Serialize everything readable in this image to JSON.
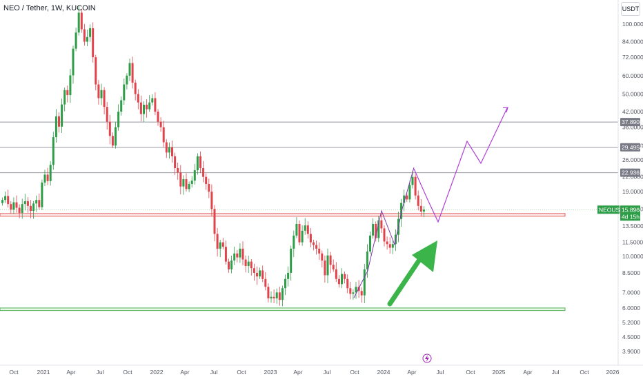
{
  "header": {
    "symbol_title": "NEO / Tether, 1W, KUCOIN"
  },
  "price_scale": {
    "currency_label": "USDT"
  },
  "chart_data": {
    "type": "candlestick",
    "symbol": "NEO / Tether",
    "interval": "1W",
    "exchange": "KUCOIN",
    "y_scale": "log",
    "ylim": [
      3.5,
      110
    ],
    "y_ticks": [
      "100.0000",
      "84.0000",
      "72.0000",
      "60.0000",
      "50.0000",
      "42.0000",
      "36.0000",
      "30.0000",
      "26.0000",
      "22.0000",
      "19.0000",
      "16.0000",
      "13.5000",
      "11.5000",
      "10.0000",
      "8.5000",
      "7.0000",
      "6.0000",
      "5.2000",
      "4.5000",
      "3.9000"
    ],
    "x_ticks": [
      "Oct",
      "2021",
      "Apr",
      "Jul",
      "Oct",
      "2022",
      "Apr",
      "Jul",
      "Oct",
      "2023",
      "Apr",
      "Jul",
      "Oct",
      "2024",
      "Apr",
      "Jul",
      "Oct",
      "2025",
      "Apr",
      "Jul",
      "Oct",
      "2026"
    ],
    "key_levels": [
      {
        "label": "37.8908",
        "value": 37.8908
      },
      {
        "label": "29.4958",
        "value": 29.4958
      },
      {
        "label": "22.9361",
        "value": 22.9361
      }
    ],
    "current_price": {
      "symbol_label": "NEOUSDT",
      "value_label": "15.8966",
      "countdown": "4d 15h",
      "value": 15.8966
    },
    "support_zone": [
      14.9,
      15.3
    ],
    "bottom_zone": [
      5.85,
      6.0
    ],
    "series_close": [
      17.5,
      18.2,
      16.8,
      15.9,
      17.1,
      16.2,
      15.4,
      16.8,
      17.3,
      16.5,
      15.7,
      16.9,
      17.5,
      16.3,
      20.8,
      22.5,
      21.1,
      24.8,
      32.6,
      40.1,
      36.2,
      45.1,
      52.0,
      49.5,
      60.2,
      78.4,
      92.0,
      112.0,
      95.0,
      84.0,
      88.0,
      96.0,
      72.0,
      55.0,
      48.0,
      52.0,
      44.0,
      38.0,
      33.0,
      30.0,
      36.0,
      42.0,
      47.0,
      55.0,
      60.0,
      68.0,
      56.0,
      50.0,
      46.0,
      41.0,
      45.0,
      43.0,
      46.0,
      48.0,
      42.0,
      38.0,
      36.0,
      31.0,
      28.0,
      29.5,
      27.0,
      24.0,
      23.0,
      20.0,
      21.5,
      19.5,
      20.5,
      21.2,
      23.5,
      27.0,
      24.0,
      22.0,
      20.5,
      19.0,
      16.0,
      12.5,
      10.8,
      11.5,
      11.0,
      9.5,
      8.8,
      9.6,
      10.3,
      9.9,
      10.8,
      9.7,
      9.1,
      9.5,
      8.9,
      8.5,
      8.2,
      8.7,
      8.0,
      7.4,
      6.6,
      6.7,
      6.6,
      7.0,
      6.5,
      7.3,
      8.0,
      8.5,
      10.8,
      12.3,
      13.8,
      11.5,
      12.9,
      13.6,
      12.5,
      11.5,
      11.2,
      10.8,
      10.3,
      9.6,
      8.3,
      10.1,
      9.2,
      8.8,
      8.0,
      7.6,
      8.4,
      8.0,
      7.3,
      6.9,
      7.0,
      7.4,
      7.1,
      6.8,
      8.8,
      10.5,
      12.3,
      13.8,
      12.0,
      14.3,
      13.2,
      11.6,
      11.3,
      10.9,
      11.3,
      12.4,
      14.5,
      17.0,
      18.3,
      17.6,
      20.3,
      22.0,
      18.3,
      16.5,
      15.6,
      15.9
    ]
  }
}
